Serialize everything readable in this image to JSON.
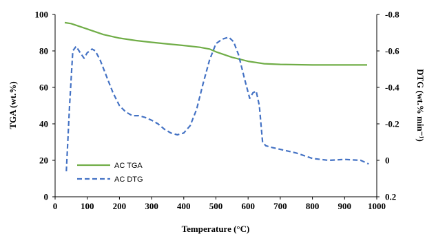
{
  "chart_data": {
    "type": "line",
    "xlabel": "Temperature (°C)",
    "ylabel_left": "TGA (wt.%)",
    "ylabel_right": "DTG (wt.% min⁻¹)",
    "xlim": [
      0,
      1000
    ],
    "ylim_left": [
      0,
      100
    ],
    "ylim_right": [
      0.2,
      -0.8
    ],
    "right_axis_inverted": true,
    "grid": false,
    "legend_position": "lower-left inside",
    "x_ticks": [
      "0",
      "100",
      "200",
      "300",
      "400",
      "500",
      "600",
      "700",
      "800",
      "900",
      "1000"
    ],
    "y_left_ticks": [
      "0",
      "20",
      "40",
      "60",
      "80",
      "100"
    ],
    "y_right_ticks": [
      "0.2",
      "0",
      "-0.2",
      "-0.4",
      "-0.6",
      "-0.8"
    ],
    "series": [
      {
        "name": "AC TGA",
        "axis": "left",
        "style": "solid",
        "color": "#70ad47",
        "x": [
          30,
          50,
          100,
          150,
          200,
          250,
          300,
          350,
          400,
          450,
          480,
          500,
          550,
          600,
          650,
          700,
          800,
          900,
          970
        ],
        "y": [
          95.5,
          95,
          92,
          89,
          87,
          85.7,
          84.7,
          83.8,
          83,
          82,
          81,
          79.5,
          76.5,
          74.3,
          73,
          72.6,
          72.3,
          72.3,
          72.3
        ]
      },
      {
        "name": "AC DTG",
        "axis": "right",
        "style": "dashed",
        "color": "#4472c4",
        "x": [
          35,
          45,
          55,
          65,
          80,
          90,
          100,
          115,
          125,
          140,
          160,
          180,
          200,
          220,
          240,
          260,
          280,
          300,
          320,
          340,
          360,
          380,
          400,
          420,
          440,
          460,
          480,
          500,
          520,
          540,
          555,
          570,
          590,
          605,
          615,
          625,
          635,
          645,
          655,
          675,
          700,
          750,
          800,
          850,
          900,
          950,
          975
        ],
        "y": [
          0.06,
          -0.3,
          -0.6,
          -0.625,
          -0.585,
          -0.56,
          -0.59,
          -0.61,
          -0.6,
          -0.55,
          -0.46,
          -0.37,
          -0.3,
          -0.265,
          -0.245,
          -0.245,
          -0.235,
          -0.22,
          -0.2,
          -0.17,
          -0.15,
          -0.14,
          -0.15,
          -0.19,
          -0.28,
          -0.42,
          -0.55,
          -0.64,
          -0.665,
          -0.675,
          -0.65,
          -0.58,
          -0.44,
          -0.34,
          -0.37,
          -0.38,
          -0.3,
          -0.1,
          -0.08,
          -0.07,
          -0.06,
          -0.04,
          -0.01,
          0.0,
          -0.005,
          0.0,
          0.02
        ]
      }
    ],
    "legend": [
      {
        "label": "AC TGA",
        "style": "solid",
        "color": "#70ad47"
      },
      {
        "label": "AC DTG",
        "style": "dashed",
        "color": "#4472c4"
      }
    ]
  }
}
